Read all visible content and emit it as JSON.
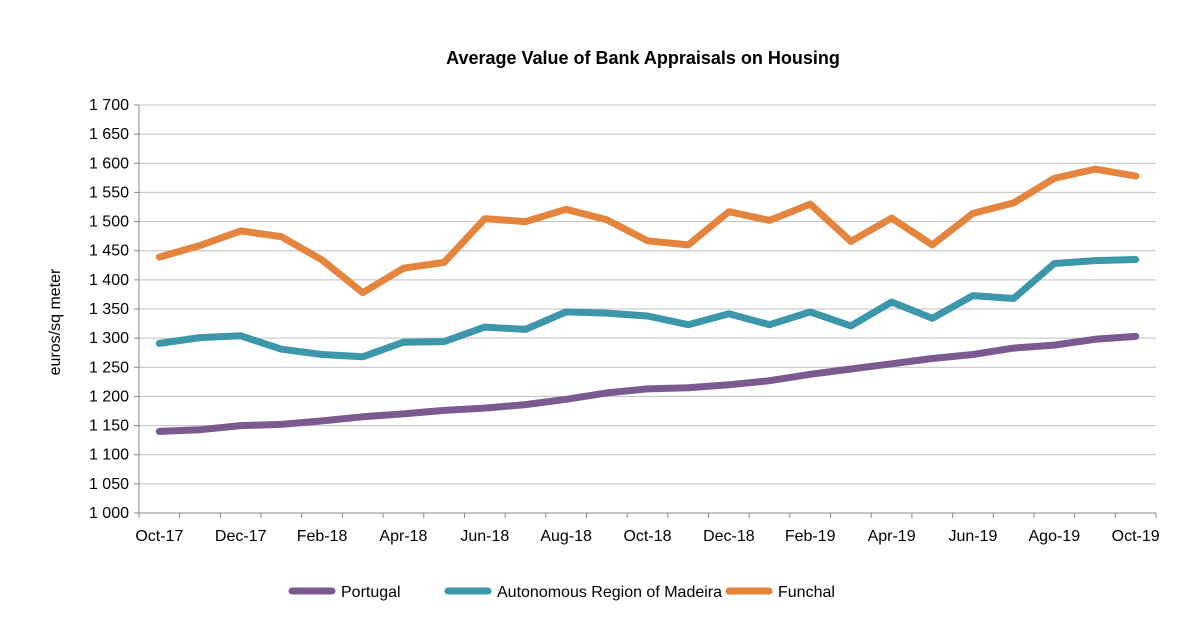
{
  "chart_data": {
    "type": "line",
    "title": "Average Value of Bank Appraisals on Housing",
    "xlabel": "",
    "ylabel": "euros/sq meter",
    "ylim": [
      1000,
      1700
    ],
    "yticks": [
      "1 000",
      "1 050",
      "1 100",
      "1 150",
      "1 200",
      "1 250",
      "1 300",
      "1 350",
      "1 400",
      "1 450",
      "1 500",
      "1 550",
      "1 600",
      "1 650",
      "1 700"
    ],
    "x": [
      "Oct-17",
      "Nov-17",
      "Dec-17",
      "Jan-18",
      "Feb-18",
      "Mar-18",
      "Apr-18",
      "May-18",
      "Jun-18",
      "Jul-18",
      "Aug-18",
      "Sep-18",
      "Oct-18",
      "Nov-18",
      "Dec-18",
      "Jan-19",
      "Feb-19",
      "Mar-19",
      "Apr-19",
      "May-19",
      "Jun-19",
      "Jul-19",
      "Ago-19",
      "Sep-19",
      "Oct-19"
    ],
    "xtick_labels": [
      "Oct-17",
      "Dec-17",
      "Feb-18",
      "Apr-18",
      "Jun-18",
      "Aug-18",
      "Oct-18",
      "Dec-18",
      "Feb-19",
      "Apr-19",
      "Jun-19",
      "Ago-19",
      "Oct-19"
    ],
    "grid": true,
    "legend_position": "bottom",
    "series": [
      {
        "name": "Portugal",
        "color": "#7b5a92",
        "values": [
          1140,
          1143,
          1150,
          1152,
          1158,
          1165,
          1170,
          1176,
          1180,
          1186,
          1195,
          1206,
          1213,
          1215,
          1220,
          1227,
          1238,
          1247,
          1256,
          1265,
          1272,
          1283,
          1288,
          1298,
          1303
        ]
      },
      {
        "name": "Autonomous Region of Madeira",
        "color": "#3c97ab",
        "values": [
          1291,
          1301,
          1304,
          1281,
          1272,
          1268,
          1293,
          1294,
          1319,
          1315,
          1345,
          1343,
          1338,
          1323,
          1342,
          1323,
          1345,
          1321,
          1362,
          1334,
          1373,
          1368,
          1428,
          1433,
          1435
        ]
      },
      {
        "name": "Funchal",
        "color": "#e5843c",
        "values": [
          1439,
          1459,
          1484,
          1474,
          1434,
          1378,
          1420,
          1430,
          1505,
          1500,
          1521,
          1503,
          1467,
          1460,
          1517,
          1502,
          1530,
          1466,
          1506,
          1460,
          1514,
          1532,
          1574,
          1590,
          1578
        ]
      }
    ]
  }
}
